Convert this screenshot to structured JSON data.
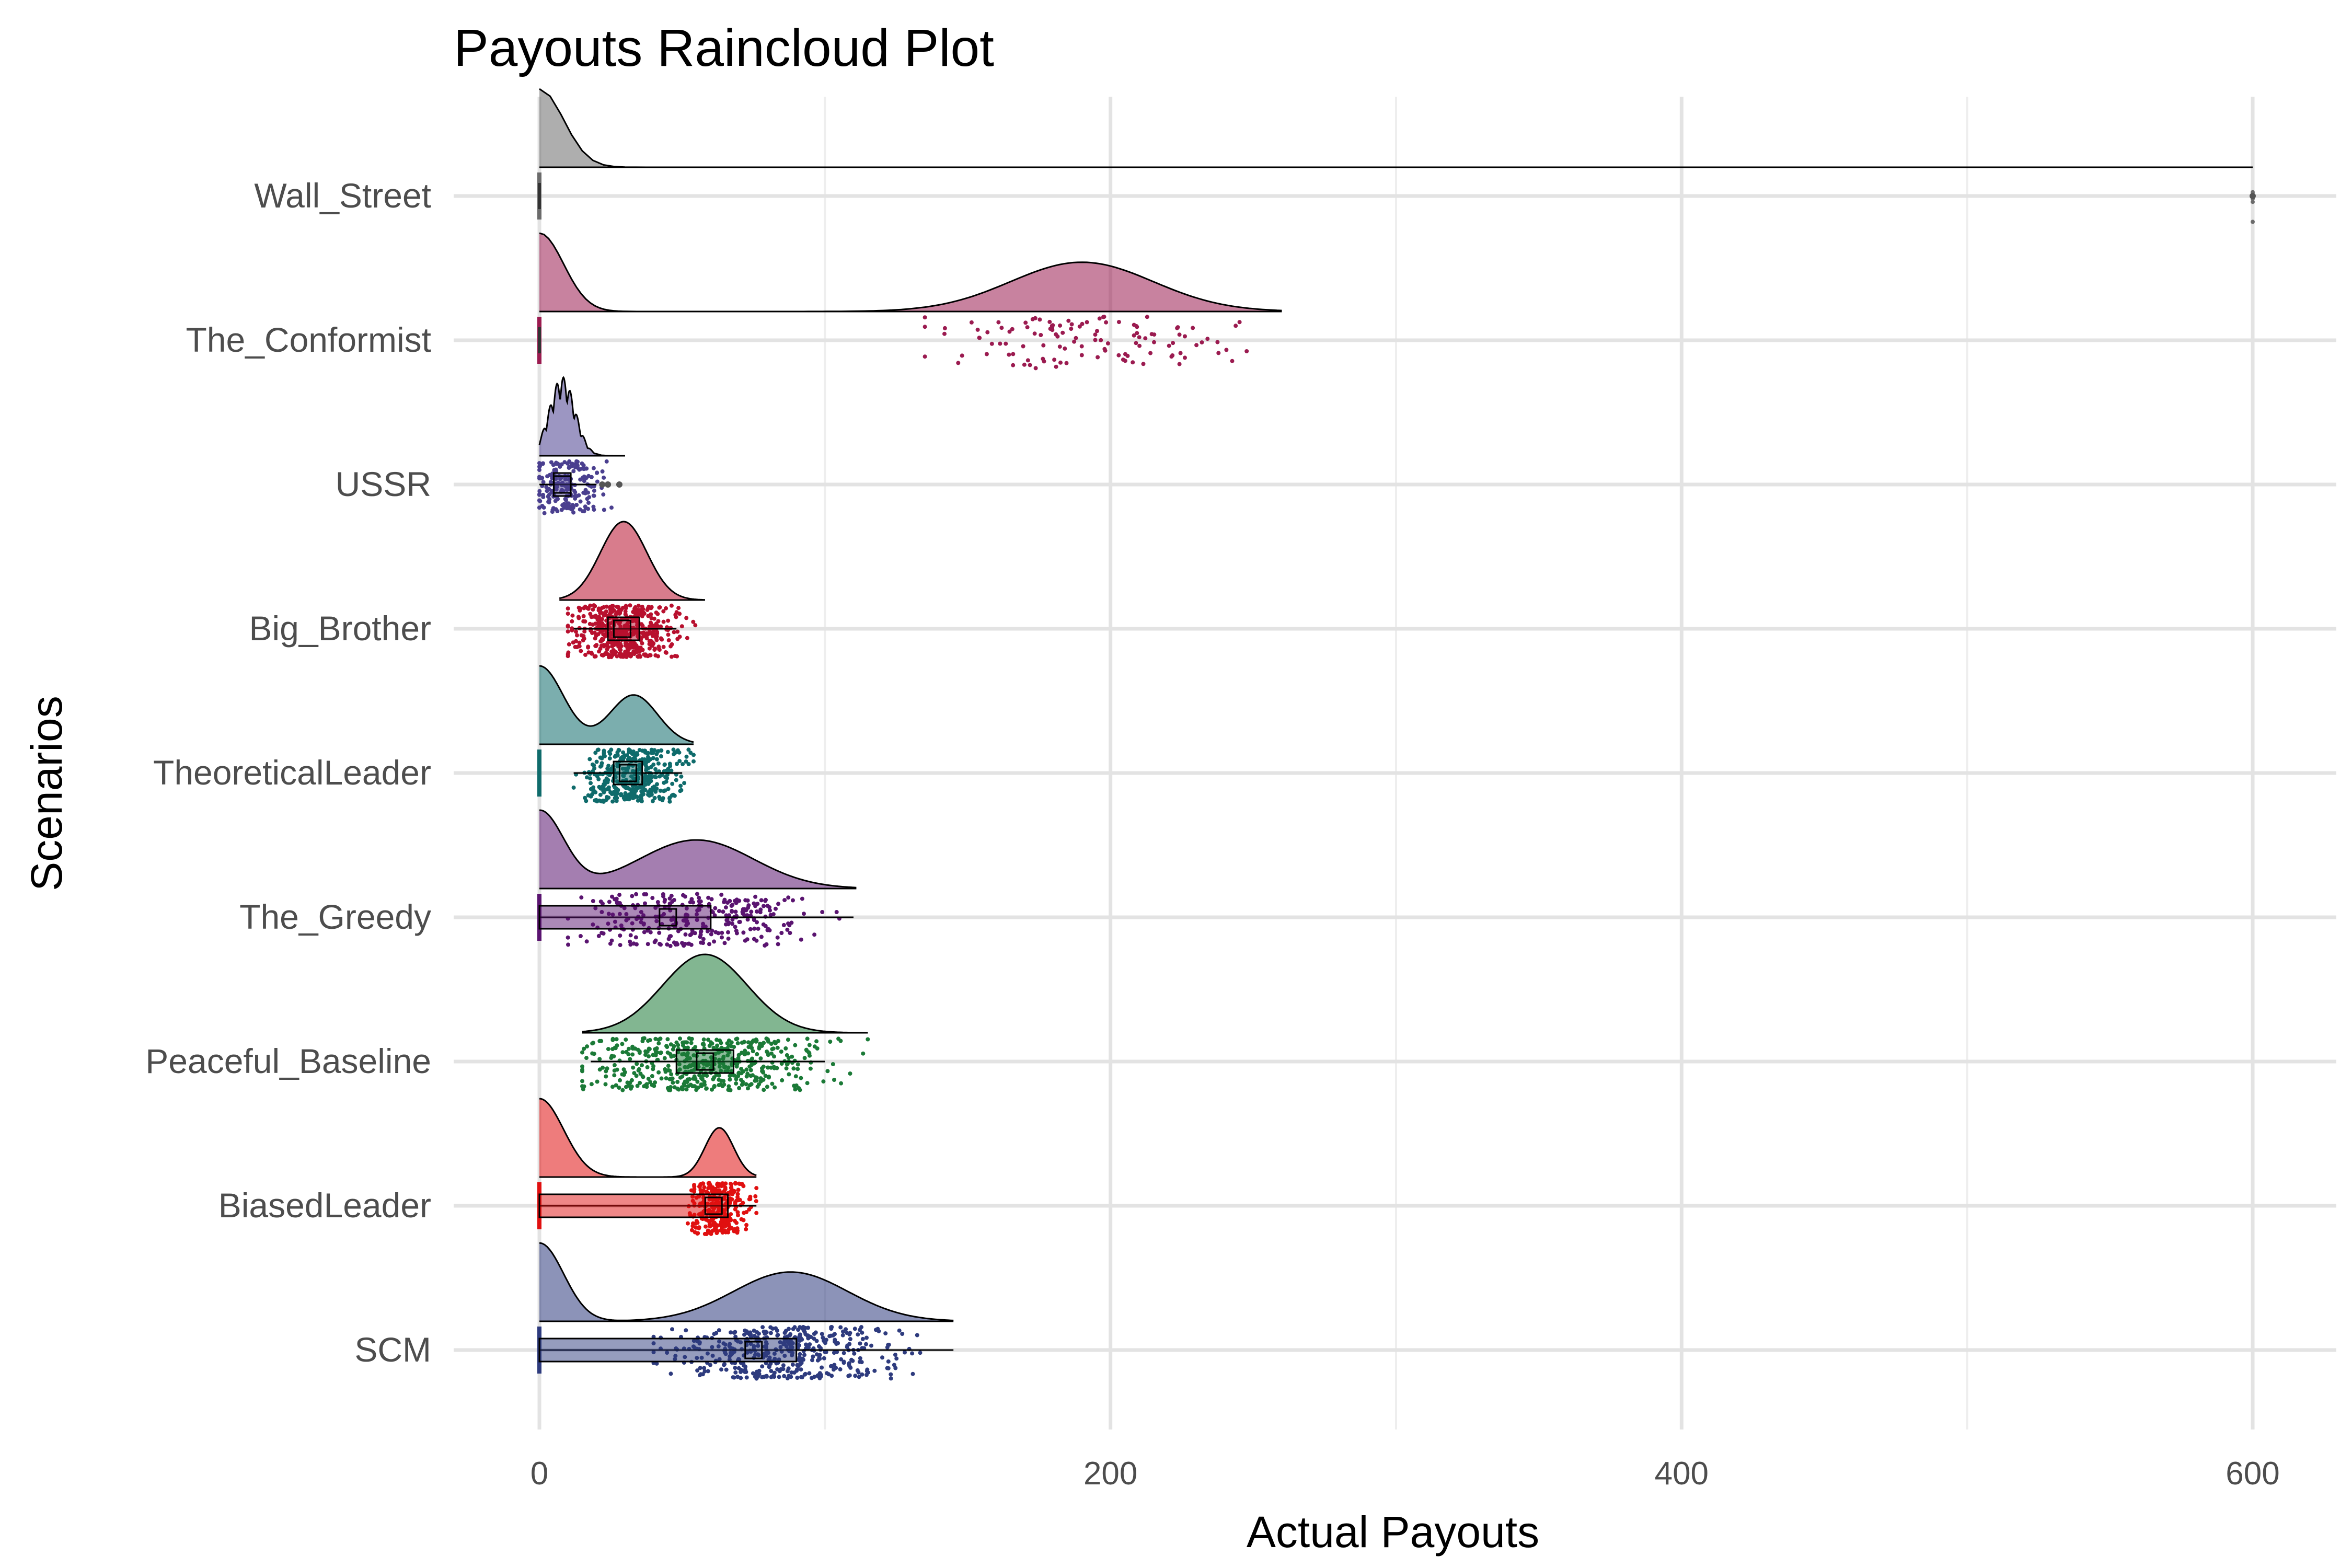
{
  "chart_data": {
    "type": "raincloud",
    "title": "Payouts Raincloud Plot",
    "xlabel": "Actual Payouts",
    "ylabel": "Scenarios",
    "xlim": [
      -15,
      630
    ],
    "xticks": [
      0,
      200,
      400,
      600
    ],
    "grid": true,
    "legend": "none",
    "categories": [
      "Wall_Street",
      "The_Conformist",
      "USSR",
      "Big_Brother",
      "TheoreticalLeader",
      "The_Greedy",
      "Peaceful_Baseline",
      "BiasedLeader",
      "SCM"
    ],
    "series": [
      {
        "name": "Wall_Street",
        "color": "#6b6b6b",
        "min": 0,
        "q1": 0,
        "median": 0,
        "q3": 0,
        "max": 0,
        "outliers": [
          600
        ],
        "points_range": [
          600,
          600
        ],
        "n_points": 4,
        "zero_mass": true,
        "density_max": 600
      },
      {
        "name": "The_Conformist",
        "color": "#9b1b50",
        "min": 0,
        "q1": 0,
        "median": 0,
        "q3": 0,
        "max": 0,
        "outliers": [],
        "points_range": [
          135,
          260
        ],
        "points_center": 190,
        "n_points": 120,
        "zero_mass": true,
        "density_max": 260
      },
      {
        "name": "USSR",
        "color": "#4a3f8f",
        "min": 0,
        "q1": 5,
        "median": 8,
        "q3": 11,
        "max": 20,
        "outliers": [
          22,
          24,
          28
        ],
        "points_range": [
          0,
          30
        ],
        "points_center": 9,
        "n_points": 200,
        "zero_mass": false,
        "density_min": 0,
        "density_max": 30
      },
      {
        "name": "Big_Brother",
        "color": "#b8102e",
        "min": 12,
        "q1": 24,
        "median": 29,
        "q3": 35,
        "max": 48,
        "outliers": [],
        "points_range": [
          10,
          55
        ],
        "points_center": 30,
        "n_points": 500,
        "zero_mass": false,
        "density_min": 7,
        "density_max": 58
      },
      {
        "name": "TheoreticalLeader",
        "color": "#0f6b6b",
        "min": 12,
        "q1": 26,
        "median": 31,
        "q3": 36,
        "max": 50,
        "outliers": [],
        "points_range": [
          12,
          54
        ],
        "points_center": 33,
        "n_points": 400,
        "zero_mass": true,
        "density_max": 54
      },
      {
        "name": "The_Greedy",
        "color": "#5a1470",
        "min": 0,
        "q1": 0,
        "median": 45,
        "q3": 60,
        "max": 110,
        "outliers": [],
        "points_range": [
          10,
          110
        ],
        "points_center": 55,
        "n_points": 300,
        "zero_mass": true,
        "density_max": 111
      },
      {
        "name": "Peaceful_Baseline",
        "color": "#1b7a37",
        "min": 18,
        "q1": 48,
        "median": 58,
        "q3": 68,
        "max": 100,
        "outliers": [],
        "points_range": [
          15,
          115
        ],
        "points_center": 58,
        "n_points": 500,
        "zero_mass": false,
        "density_min": 15,
        "density_max": 115
      },
      {
        "name": "BiasedLeader",
        "color": "#e01010",
        "min": 0,
        "q1": 0,
        "median": 61,
        "q3": 66,
        "max": 76,
        "outliers": [],
        "points_range": [
          51,
          76
        ],
        "points_center": 63,
        "n_points": 300,
        "zero_mass": true,
        "density_max": 76
      },
      {
        "name": "SCM",
        "color": "#2e3b7e",
        "min": 0,
        "q1": 0,
        "median": 75,
        "q3": 90,
        "max": 145,
        "outliers": [],
        "points_range": [
          40,
          140
        ],
        "points_center": 88,
        "n_points": 450,
        "zero_mass": true,
        "density_max": 145
      }
    ]
  }
}
